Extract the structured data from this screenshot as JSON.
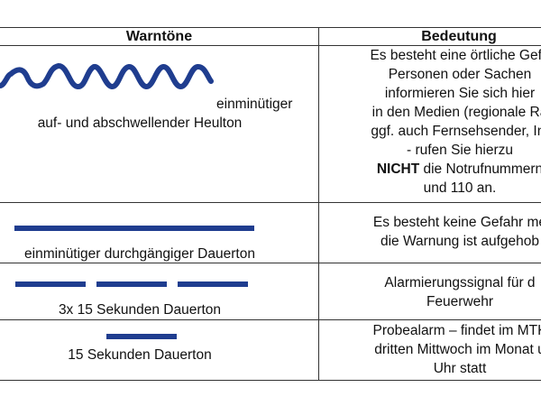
{
  "header": {
    "col1": "Warntöne",
    "col2": "Bedeutung"
  },
  "rows": [
    {
      "icon": "wave-line",
      "left": [
        "einminütiger",
        "auf- und abschwellender Heulton"
      ],
      "right": [
        "Es besteht eine örtliche Gefa",
        "Personen oder Sachen",
        "informieren Sie sich hier",
        "in den Medien (regionale Ra",
        "ggf. auch Fernsehsender, Int",
        "- rufen Sie hierzu"
      ],
      "right_bold": "NICHT",
      "right_after_bold": " die Notrufnummern",
      "right_last": "und 110 an."
    },
    {
      "icon": "long-bar",
      "left": [
        "einminütiger durchgängiger Dauerton"
      ],
      "right": [
        "Es besteht keine Gefahr me",
        "die Warnung ist aufgehob"
      ]
    },
    {
      "icon": "three-bars",
      "left": [
        "3x 15 Sekunden Dauerton"
      ],
      "right": [
        "Alarmierungssignal für d",
        "Feuerwehr"
      ]
    },
    {
      "icon": "short-bar",
      "left": [
        "15 Sekunden Dauerton"
      ],
      "right": [
        "Probealarm – findet im MTK",
        "dritten Mittwoch im Monat u",
        "Uhr statt"
      ]
    }
  ],
  "colors": {
    "icon_blue": "#1f3d8f",
    "border": "#333333"
  }
}
